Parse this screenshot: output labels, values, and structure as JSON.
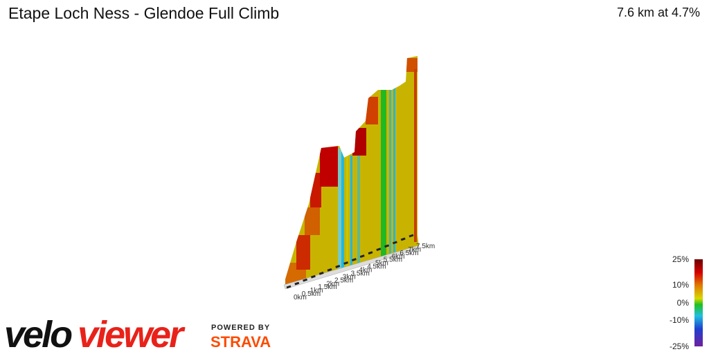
{
  "header": {
    "title": "Etape Loch Ness - Glendoe Full Climb",
    "summary": "7.6 km at 4.7%"
  },
  "distance_labels": [
    "0km",
    "0.5km",
    "1km",
    "1.5km",
    "2km",
    "2.5km",
    "3km",
    "3.5km",
    "4km",
    "4.5km",
    "5km",
    "5.5km",
    "6km",
    "6.5km",
    "7km",
    "7.5km"
  ],
  "gradient_legend": [
    "25%",
    "10%",
    "0%",
    "-10%",
    "-25%"
  ],
  "logo": {
    "velo": "velo",
    "viewer": "viewer",
    "powered_by": "POWERED BY",
    "strava": "STRAVA"
  }
}
